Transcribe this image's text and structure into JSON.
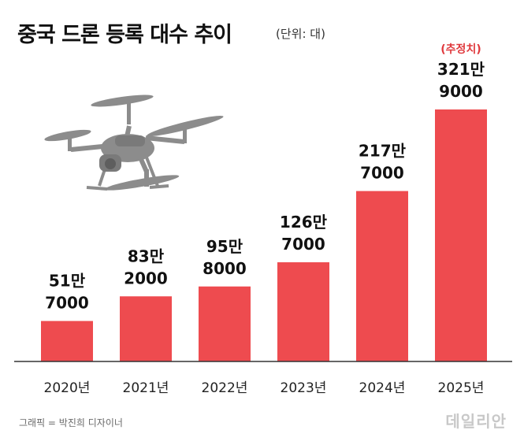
{
  "title": "중국 드론  등록 대수 추이",
  "unit_note": "(단위: 대)",
  "footer": {
    "credit": "그래픽 = 박진희 디자이너",
    "logo": "데일리안"
  },
  "colors": {
    "bar": "#ee4b4f",
    "estimate_note": "#e03a3e",
    "axis": "#333333",
    "drone": "#8c8c8c"
  },
  "decor": {
    "drone_icon": "drone-icon"
  },
  "chart_data": {
    "type": "bar",
    "title": "중국 드론  등록 대수 추이",
    "unit": "(단위: 대)",
    "categories": [
      "2020년",
      "2021년",
      "2022년",
      "2023년",
      "2024년",
      "2025년"
    ],
    "values": [
      517000,
      832000,
      958000,
      1267000,
      2177000,
      3219000
    ],
    "value_labels": [
      [
        "51만",
        "7000"
      ],
      [
        "83만",
        "2000"
      ],
      [
        "95만",
        "8000"
      ],
      [
        "126만",
        "7000"
      ],
      [
        "217만",
        "7000"
      ],
      [
        "321만",
        "9000"
      ]
    ],
    "annotations": [
      {
        "category": "2025년",
        "text": "(추정치)"
      }
    ],
    "xlabel": "",
    "ylabel": "",
    "ylim": [
      0,
      3219000
    ],
    "grid": false,
    "legend": "none"
  }
}
